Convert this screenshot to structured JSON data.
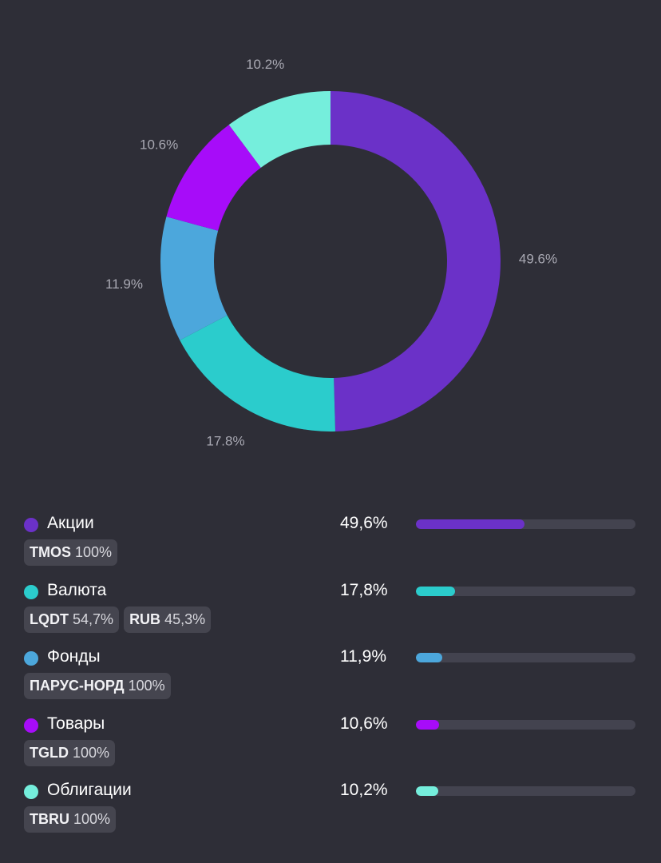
{
  "chart_data": {
    "type": "pie",
    "categories": [
      "Акции",
      "Валюта",
      "Фонды",
      "Товары",
      "Облигации"
    ],
    "values": [
      49.6,
      17.8,
      11.9,
      10.6,
      10.2
    ],
    "labels": [
      "49.6%",
      "17.8%",
      "11.9%",
      "10.6%",
      "10.2%"
    ],
    "colors": [
      "#6b31c8",
      "#2bcccc",
      "#4ca7dc",
      "#a70cf9",
      "#75eedc"
    ],
    "donut": true
  },
  "legend": [
    {
      "name": "Акции",
      "percent": "49,6%",
      "fraction": 0.496,
      "color": "#6b31c8",
      "tags": [
        {
          "ticker": "TMOS",
          "share": "100%"
        }
      ]
    },
    {
      "name": "Валюта",
      "percent": "17,8%",
      "fraction": 0.178,
      "color": "#2bcccc",
      "tags": [
        {
          "ticker": "LQDT",
          "share": "54,7%"
        },
        {
          "ticker": "RUB",
          "share": "45,3%"
        }
      ]
    },
    {
      "name": "Фонды",
      "percent": "11,9%",
      "fraction": 0.119,
      "color": "#4ca7dc",
      "tags": [
        {
          "ticker": "ПАРУС-НОРД",
          "share": "100%"
        }
      ]
    },
    {
      "name": "Товары",
      "percent": "10,6%",
      "fraction": 0.106,
      "color": "#a70cf9",
      "tags": [
        {
          "ticker": "TGLD",
          "share": "100%"
        }
      ]
    },
    {
      "name": "Облигации",
      "percent": "10,2%",
      "fraction": 0.102,
      "color": "#75eedc",
      "tags": [
        {
          "ticker": "TBRU",
          "share": "100%"
        }
      ]
    }
  ]
}
